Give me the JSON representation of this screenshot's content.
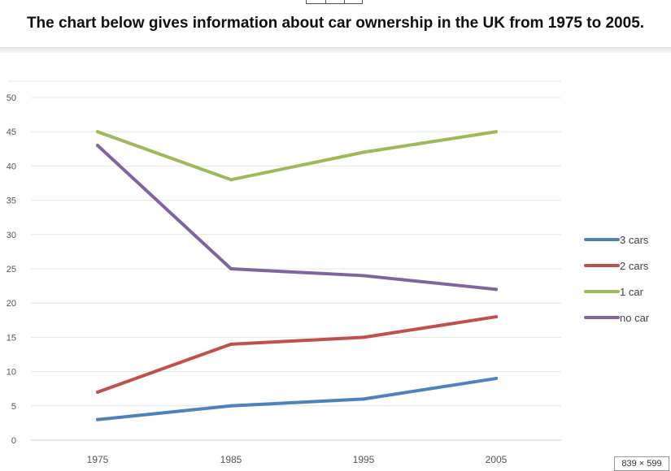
{
  "header": {
    "title": "The chart below gives information about car ownership in the UK from 1975 to 2005."
  },
  "chart_data": {
    "type": "line",
    "title": "",
    "xlabel": "",
    "ylabel": "",
    "categories": [
      "1975",
      "1985",
      "1995",
      "2005"
    ],
    "ylim": [
      0,
      50
    ],
    "yticks": [
      0,
      5,
      10,
      15,
      20,
      25,
      30,
      35,
      40,
      45,
      50
    ],
    "grid": true,
    "legend": "right",
    "series": [
      {
        "name": "3 cars",
        "color": "#4f81bd",
        "values": [
          3,
          5,
          6,
          9
        ]
      },
      {
        "name": "2 cars",
        "color": "#c0504d",
        "values": [
          7,
          14,
          15,
          18
        ]
      },
      {
        "name": "1 car",
        "color": "#9bbb59",
        "values": [
          45,
          38,
          42,
          45
        ]
      },
      {
        "name": "no car",
        "color": "#8064a2",
        "values": [
          43,
          25,
          24,
          22
        ]
      }
    ]
  },
  "badge": {
    "dimensions": "839 × 599"
  }
}
